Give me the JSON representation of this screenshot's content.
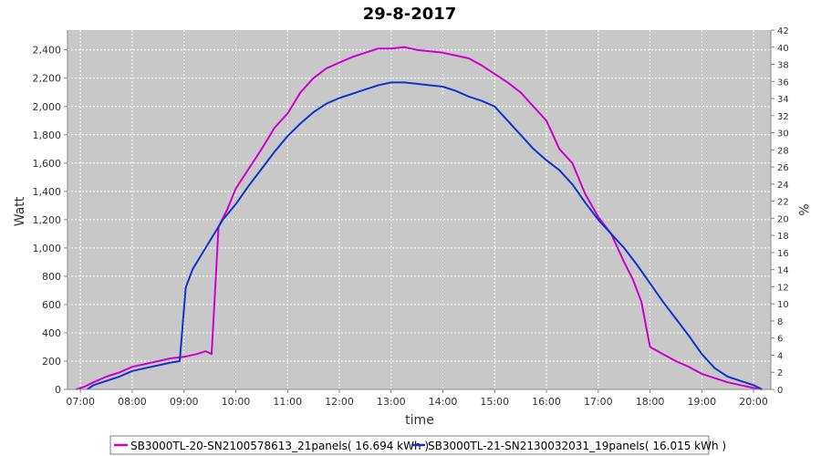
{
  "chart_data": {
    "type": "line",
    "title": "29-8-2017",
    "xlabel": "time",
    "ylabel": "Watt",
    "y2label": "%",
    "xlim": [
      "06:45",
      "20:20"
    ],
    "ylim": [
      0,
      2540
    ],
    "y2lim": [
      0,
      42
    ],
    "x_ticks": [
      "07:00",
      "08:00",
      "09:00",
      "10:00",
      "11:00",
      "12:00",
      "13:00",
      "14:00",
      "15:00",
      "16:00",
      "17:00",
      "18:00",
      "19:00",
      "20:00"
    ],
    "y_ticks": [
      "0",
      "200",
      "400",
      "600",
      "800",
      "1,000",
      "1,200",
      "1,400",
      "1,600",
      "1,800",
      "2,000",
      "2,200",
      "2,400"
    ],
    "y2_ticks": [
      "0",
      "2",
      "4",
      "6",
      "8",
      "10",
      "12",
      "14",
      "16",
      "18",
      "20",
      "22",
      "24",
      "26",
      "28",
      "30",
      "32",
      "34",
      "36",
      "38",
      "40",
      "42"
    ],
    "grid": true,
    "legend_position": "bottom",
    "colors": {
      "plot_bg": "#c8c8c8",
      "grid": "#ffffff"
    },
    "series": [
      {
        "name": "SB3000TL-20-SN2100578613_21panels( 16.694 kWh )",
        "color": "#cc00cc",
        "x": [
          "06:55",
          "07:05",
          "07:15",
          "07:30",
          "07:45",
          "08:00",
          "08:15",
          "08:30",
          "08:45",
          "09:00",
          "09:15",
          "09:25",
          "09:32",
          "09:36",
          "09:40",
          "09:50",
          "10:00",
          "10:15",
          "10:30",
          "10:45",
          "11:00",
          "11:15",
          "11:30",
          "11:45",
          "12:00",
          "12:15",
          "12:30",
          "12:45",
          "13:00",
          "13:15",
          "13:30",
          "13:45",
          "14:00",
          "14:15",
          "14:30",
          "14:45",
          "15:00",
          "15:15",
          "15:30",
          "15:45",
          "16:00",
          "16:15",
          "16:30",
          "16:45",
          "17:00",
          "17:15",
          "17:30",
          "17:40",
          "17:50",
          "18:00",
          "18:15",
          "18:30",
          "18:45",
          "19:00",
          "19:15",
          "19:30",
          "19:45",
          "20:00",
          "20:10"
        ],
        "values": [
          0,
          20,
          50,
          90,
          120,
          160,
          180,
          200,
          220,
          230,
          250,
          270,
          250,
          700,
          1150,
          1270,
          1420,
          1560,
          1700,
          1850,
          1950,
          2100,
          2200,
          2270,
          2310,
          2350,
          2380,
          2410,
          2410,
          2420,
          2400,
          2390,
          2380,
          2360,
          2340,
          2290,
          2230,
          2170,
          2100,
          2000,
          1900,
          1700,
          1600,
          1380,
          1220,
          1100,
          900,
          780,
          620,
          300,
          250,
          200,
          160,
          110,
          80,
          50,
          30,
          10,
          0
        ]
      },
      {
        "name": "SB3000TL-21-SN2130032031_19panels( 16.015 kWh )",
        "color": "#1133cc",
        "x": [
          "07:08",
          "07:15",
          "07:30",
          "07:45",
          "08:00",
          "08:15",
          "08:30",
          "08:45",
          "08:55",
          "09:02",
          "09:10",
          "09:20",
          "09:30",
          "09:45",
          "10:00",
          "10:15",
          "10:30",
          "10:45",
          "11:00",
          "11:15",
          "11:30",
          "11:45",
          "12:00",
          "12:15",
          "12:30",
          "12:45",
          "13:00",
          "13:15",
          "13:30",
          "13:45",
          "14:00",
          "14:15",
          "14:30",
          "14:45",
          "15:00",
          "15:15",
          "15:30",
          "15:45",
          "16:00",
          "16:15",
          "16:30",
          "16:45",
          "17:00",
          "17:15",
          "17:30",
          "17:45",
          "18:00",
          "18:15",
          "18:30",
          "18:45",
          "19:00",
          "19:15",
          "19:30",
          "19:45",
          "20:00",
          "20:10"
        ],
        "values": [
          0,
          30,
          60,
          90,
          130,
          150,
          170,
          190,
          200,
          720,
          850,
          950,
          1050,
          1200,
          1310,
          1440,
          1560,
          1680,
          1790,
          1880,
          1960,
          2020,
          2060,
          2090,
          2120,
          2150,
          2170,
          2170,
          2160,
          2150,
          2140,
          2110,
          2070,
          2040,
          2000,
          1900,
          1800,
          1700,
          1620,
          1550,
          1450,
          1320,
          1200,
          1100,
          1000,
          880,
          750,
          620,
          500,
          380,
          250,
          150,
          90,
          60,
          30,
          0
        ]
      }
    ]
  }
}
